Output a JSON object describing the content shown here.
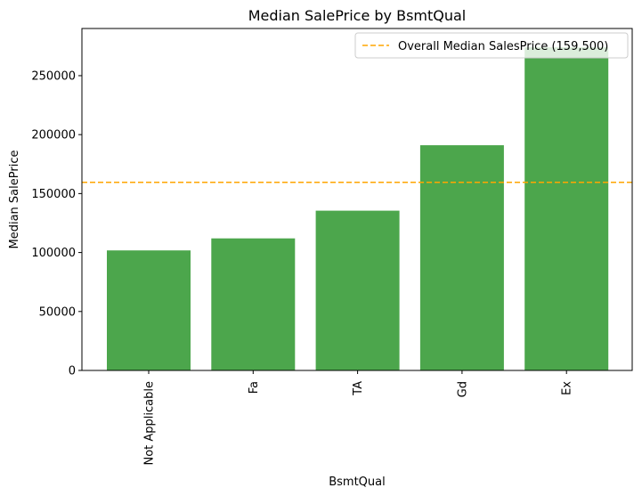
{
  "chart_data": {
    "type": "bar",
    "title": "Median SalePrice by BsmtQual",
    "xlabel": "BsmtQual",
    "ylabel": "Median SalePrice",
    "categories": [
      "Not Applicable",
      "Fa",
      "TA",
      "Gd",
      "Ex"
    ],
    "values": [
      101800,
      112000,
      135500,
      191000,
      274000
    ],
    "ylim": [
      0,
      290000
    ],
    "yticks": [
      0,
      50000,
      100000,
      150000,
      200000,
      250000
    ],
    "ytick_labels": [
      "0",
      "50000",
      "100000",
      "150000",
      "200000",
      "250000"
    ],
    "bar_color": "#4ca64c",
    "reference_line": {
      "value": 159500,
      "color": "#ffa500",
      "label": "Overall Median SalesPrice (159,500)"
    },
    "legend_position": "top-right",
    "grid": false
  }
}
